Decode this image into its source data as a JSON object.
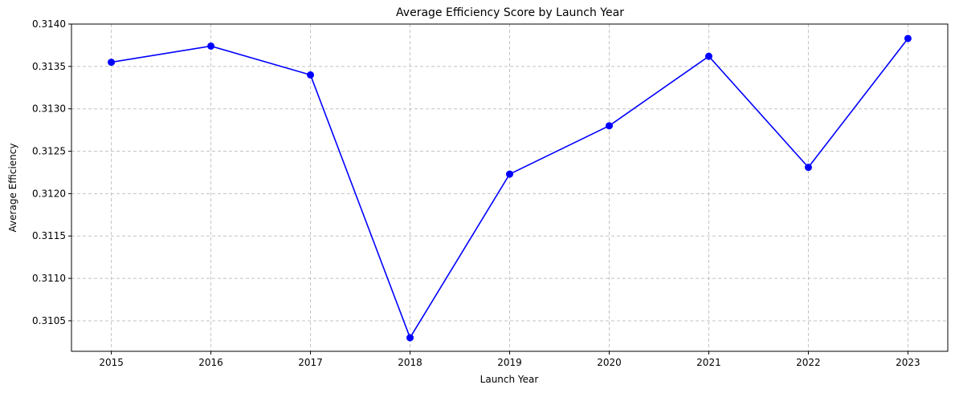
{
  "chart_data": {
    "type": "line",
    "title": "Average Efficiency Score by Launch Year",
    "xlabel": "Launch Year",
    "ylabel": "Average Efficiency",
    "x": [
      2015,
      2016,
      2017,
      2018,
      2019,
      2020,
      2021,
      2022,
      2023
    ],
    "series": [
      {
        "values": [
          0.31355,
          0.31374,
          0.3134,
          0.3103,
          0.31223,
          0.3128,
          0.31362,
          0.31231,
          0.31383
        ],
        "color": "#0000ff",
        "marker": "circle"
      }
    ],
    "xlim": [
      2014.6,
      2023.4
    ],
    "ylim": [
      0.31014,
      0.314
    ],
    "yticks": [
      0.3105,
      0.311,
      0.3115,
      0.312,
      0.3125,
      0.313,
      0.3135,
      0.314
    ],
    "ytick_labels": [
      "0.3105",
      "0.3110",
      "0.3115",
      "0.3120",
      "0.3125",
      "0.3130",
      "0.3135",
      "0.3140"
    ],
    "xticks": [
      2015,
      2016,
      2017,
      2018,
      2019,
      2020,
      2021,
      2022,
      2023
    ],
    "xtick_labels": [
      "2015",
      "2016",
      "2017",
      "2018",
      "2019",
      "2020",
      "2021",
      "2022",
      "2023"
    ],
    "grid": true
  }
}
